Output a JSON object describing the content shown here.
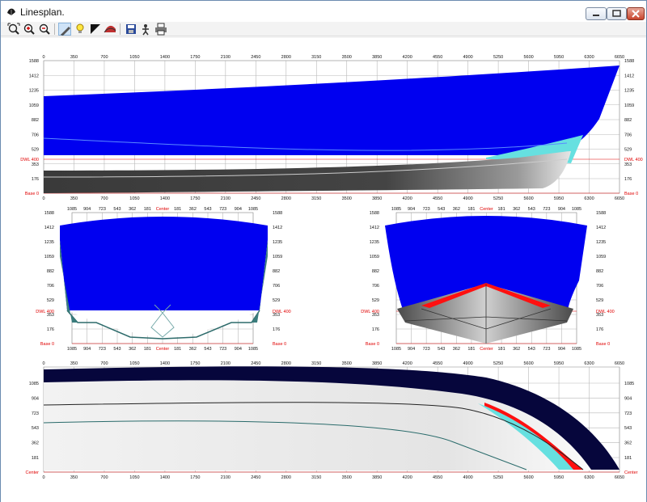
{
  "window": {
    "title": "Linesplan."
  },
  "toolbar": {
    "icons": [
      "zoom-extents-icon",
      "zoom-in-icon",
      "zoom-out-icon",
      "pencil-icon",
      "lightbulb-icon",
      "shading-icon",
      "curvature-icon",
      "save-image-icon",
      "print-setup-icon",
      "print-icon"
    ]
  },
  "profile": {
    "x_ticks": [
      "0",
      "350",
      "700",
      "1050",
      "1400",
      "1750",
      "2100",
      "2450",
      "2800",
      "3150",
      "3500",
      "3850",
      "4200",
      "4550",
      "4900",
      "5250",
      "5600",
      "5950",
      "6300",
      "6650"
    ],
    "y_ticks": [
      "1588",
      "1412",
      "1235",
      "1059",
      "882",
      "706",
      "529",
      "353",
      "176"
    ],
    "dwl_label": "DWL 400",
    "base_label": "Base 0"
  },
  "body_aft": {
    "x_ticks": [
      "1085",
      "904",
      "723",
      "543",
      "362",
      "181",
      "Center",
      "181",
      "362",
      "543",
      "723",
      "904",
      "1085"
    ],
    "y_ticks": [
      "1588",
      "1412",
      "1235",
      "1059",
      "882",
      "706",
      "529",
      "353",
      "176"
    ],
    "dwl_label": "DWL 400",
    "base_label": "Base 0"
  },
  "body_fwd": {
    "x_ticks": [
      "1085",
      "904",
      "723",
      "543",
      "362",
      "181",
      "Center",
      "181",
      "362",
      "543",
      "723",
      "904",
      "1085"
    ],
    "y_ticks": [
      "1588",
      "1412",
      "1235",
      "1059",
      "882",
      "706",
      "529",
      "353",
      "176"
    ],
    "dwl_label": "DWL 400",
    "base_label": "Base 0"
  },
  "plan": {
    "x_ticks": [
      "0",
      "350",
      "700",
      "1050",
      "1400",
      "1750",
      "2100",
      "2450",
      "2800",
      "3150",
      "3500",
      "3850",
      "4200",
      "4550",
      "4900",
      "5250",
      "5600",
      "5950",
      "6300",
      "6650"
    ],
    "y_ticks": [
      "1085",
      "904",
      "723",
      "543",
      "362",
      "181"
    ],
    "center_label": "Center"
  },
  "colors": {
    "hull": "#0000f0",
    "deck": "#06063c",
    "water": "#66e0e0",
    "keel": "#2a2a2a",
    "highlight": "#ff1010",
    "label_red": "#e00000"
  }
}
